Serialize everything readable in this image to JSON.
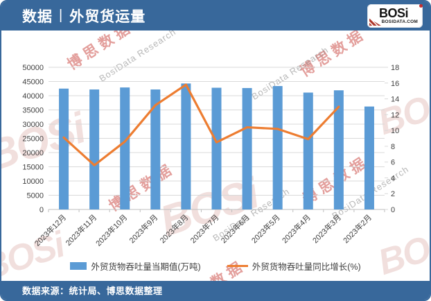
{
  "header": {
    "title_left": "数据",
    "title_sep": "|",
    "title_right": "外贸货运量",
    "logo_text": "BOSi",
    "logo_domain": "BOSIDATA.COM"
  },
  "footer": {
    "source": "数据来源：统计局、博思数据整理"
  },
  "watermark": {
    "logo": "BOSi",
    "cn": "博思数据",
    "en": "BosiData Research"
  },
  "colors": {
    "brand_blue": "#38689B",
    "bar_blue": "#5B9BD5",
    "line_orange": "#ED7D31",
    "watermark_red": "#C73E37",
    "gridline": "#D9D9D9",
    "axis_line": "#BFBFBF"
  },
  "chart_data": {
    "type": "bar",
    "subtype": "bar+line combo, dual axis",
    "categories": [
      "2023年12月",
      "2023年11月",
      "2023年10月",
      "2023年9月",
      "2023年8月",
      "2023年7月",
      "2023年6月",
      "2023年5月",
      "2023年4月",
      "2023年3月",
      "2023年2月"
    ],
    "series": [
      {
        "name": "外贸货物吞吐量当期值(万吨)",
        "type": "bar",
        "axis": "left",
        "color": "#5B9BD5",
        "values": [
          42500,
          42200,
          42900,
          42200,
          44300,
          42800,
          42700,
          43400,
          41100,
          41900,
          36200
        ]
      },
      {
        "name": "外贸货物吞吐量同比增长(%)",
        "type": "line",
        "axis": "right",
        "color": "#ED7D31",
        "values": [
          9.1,
          5.6,
          8.6,
          13.2,
          15.8,
          8.5,
          10.4,
          10.2,
          8.9,
          13,
          null
        ]
      }
    ],
    "left_axis": {
      "min": 0,
      "max": 50000,
      "step": 5000
    },
    "right_axis": {
      "min": 0,
      "max": 18,
      "step": 2
    },
    "grid": true,
    "legend_position": "bottom"
  }
}
